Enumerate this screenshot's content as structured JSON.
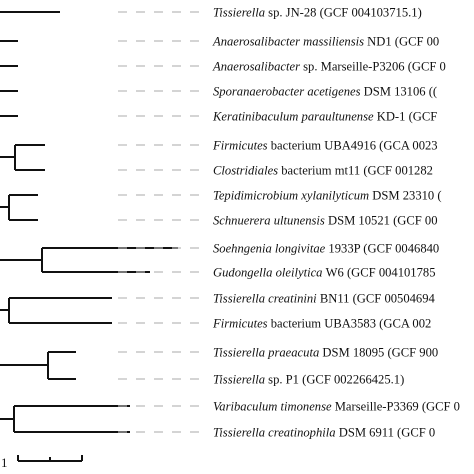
{
  "leaves": [
    {
      "genus": "Tissierella",
      "species": "sp.",
      "strain": "JN-28",
      "accession": "(GCF 004103715.1)"
    },
    {
      "genus": "Anaerosalibacter",
      "species": "massiliensis",
      "strain": "ND1",
      "accession": "(GCF 00"
    },
    {
      "genus": "Anaerosalibacter",
      "species": "sp.",
      "strain": "Marseille-P3206",
      "accession": "(GCF 0"
    },
    {
      "genus": "Sporanaerobacter",
      "species": "acetigenes",
      "strain": "DSM 13106",
      "accession": "(("
    },
    {
      "genus": "Keratinibaculum",
      "species": "paraultunense",
      "strain": "KD-1",
      "accession": "(GCF"
    },
    {
      "genus": "Firmicutes",
      "species": "bacterium",
      "strain": "UBA4916",
      "accession": "(GCA 0023"
    },
    {
      "genus": "Clostridiales",
      "species": "bacterium",
      "strain": "mt11",
      "accession": "(GCF 001282"
    },
    {
      "genus": "Tepidimicrobium",
      "species": "xylanilyticum",
      "strain": "DSM 23310",
      "accession": "("
    },
    {
      "genus": "Schnuerera",
      "species": "ultunensis",
      "strain": "DSM 10521",
      "accession": "(GCF 00"
    },
    {
      "genus": "Soehngenia",
      "species": "longivitae",
      "strain": "1933P",
      "accession": "(GCF 0046840"
    },
    {
      "genus": "Gudongella",
      "species": "oleilytica",
      "strain": "W6",
      "accession": "(GCF 004101785"
    },
    {
      "genus": "Tissierella",
      "species": "creatinini",
      "strain": "BN11",
      "accession": "(GCF 00504694"
    },
    {
      "genus": "Firmicutes",
      "species": "bacterium",
      "strain": "UBA3583",
      "accession": "(GCA 002"
    },
    {
      "genus": "Tissierella",
      "species": "praeacuta",
      "strain": "DSM 18095",
      "accession": "(GCF 900"
    },
    {
      "genus": "Tissierella",
      "species": "sp.",
      "strain": "P1",
      "accession": "(GCF 002266425.1)"
    },
    {
      "genus": "Varibaculum",
      "species": "timonense",
      "strain": "Marseille-P3369",
      "accession": "(GCF 0"
    },
    {
      "genus": "Tissierella",
      "species": "creatinophila",
      "strain": "DSM 6911",
      "accession": "(GCF 0"
    }
  ],
  "scale_bar": {
    "label": "1"
  },
  "colors": {
    "line": "#111111",
    "dash": "#bbbbbb",
    "text": "#111111"
  }
}
